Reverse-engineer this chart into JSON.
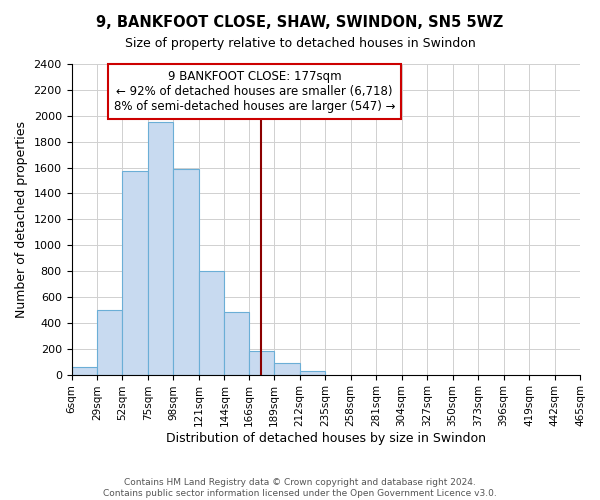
{
  "title": "9, BANKFOOT CLOSE, SHAW, SWINDON, SN5 5WZ",
  "subtitle": "Size of property relative to detached houses in Swindon",
  "xlabel": "Distribution of detached houses by size in Swindon",
  "ylabel": "Number of detached properties",
  "bar_color": "#c8daf0",
  "bar_edge_color": "#6baed6",
  "vline_color": "#8b0000",
  "vline_x": 177,
  "annotation_title": "9 BANKFOOT CLOSE: 177sqm",
  "annotation_line1": "← 92% of detached houses are smaller (6,718)",
  "annotation_line2": "8% of semi-detached houses are larger (547) →",
  "bin_edges": [
    6,
    29,
    52,
    75,
    98,
    121,
    144,
    166,
    189,
    212,
    235,
    258,
    281,
    304,
    327,
    350,
    373,
    396,
    419,
    442,
    465
  ],
  "bin_counts": [
    55,
    500,
    1575,
    1950,
    1590,
    800,
    480,
    185,
    90,
    30,
    0,
    0,
    0,
    0,
    0,
    0,
    0,
    0,
    0,
    0
  ],
  "ylim": [
    0,
    2400
  ],
  "yticks": [
    0,
    200,
    400,
    600,
    800,
    1000,
    1200,
    1400,
    1600,
    1800,
    2000,
    2200,
    2400
  ],
  "footer_line1": "Contains HM Land Registry data © Crown copyright and database right 2024.",
  "footer_line2": "Contains public sector information licensed under the Open Government Licence v3.0.",
  "background_color": "#ffffff",
  "grid_color": "#d0d0d0"
}
